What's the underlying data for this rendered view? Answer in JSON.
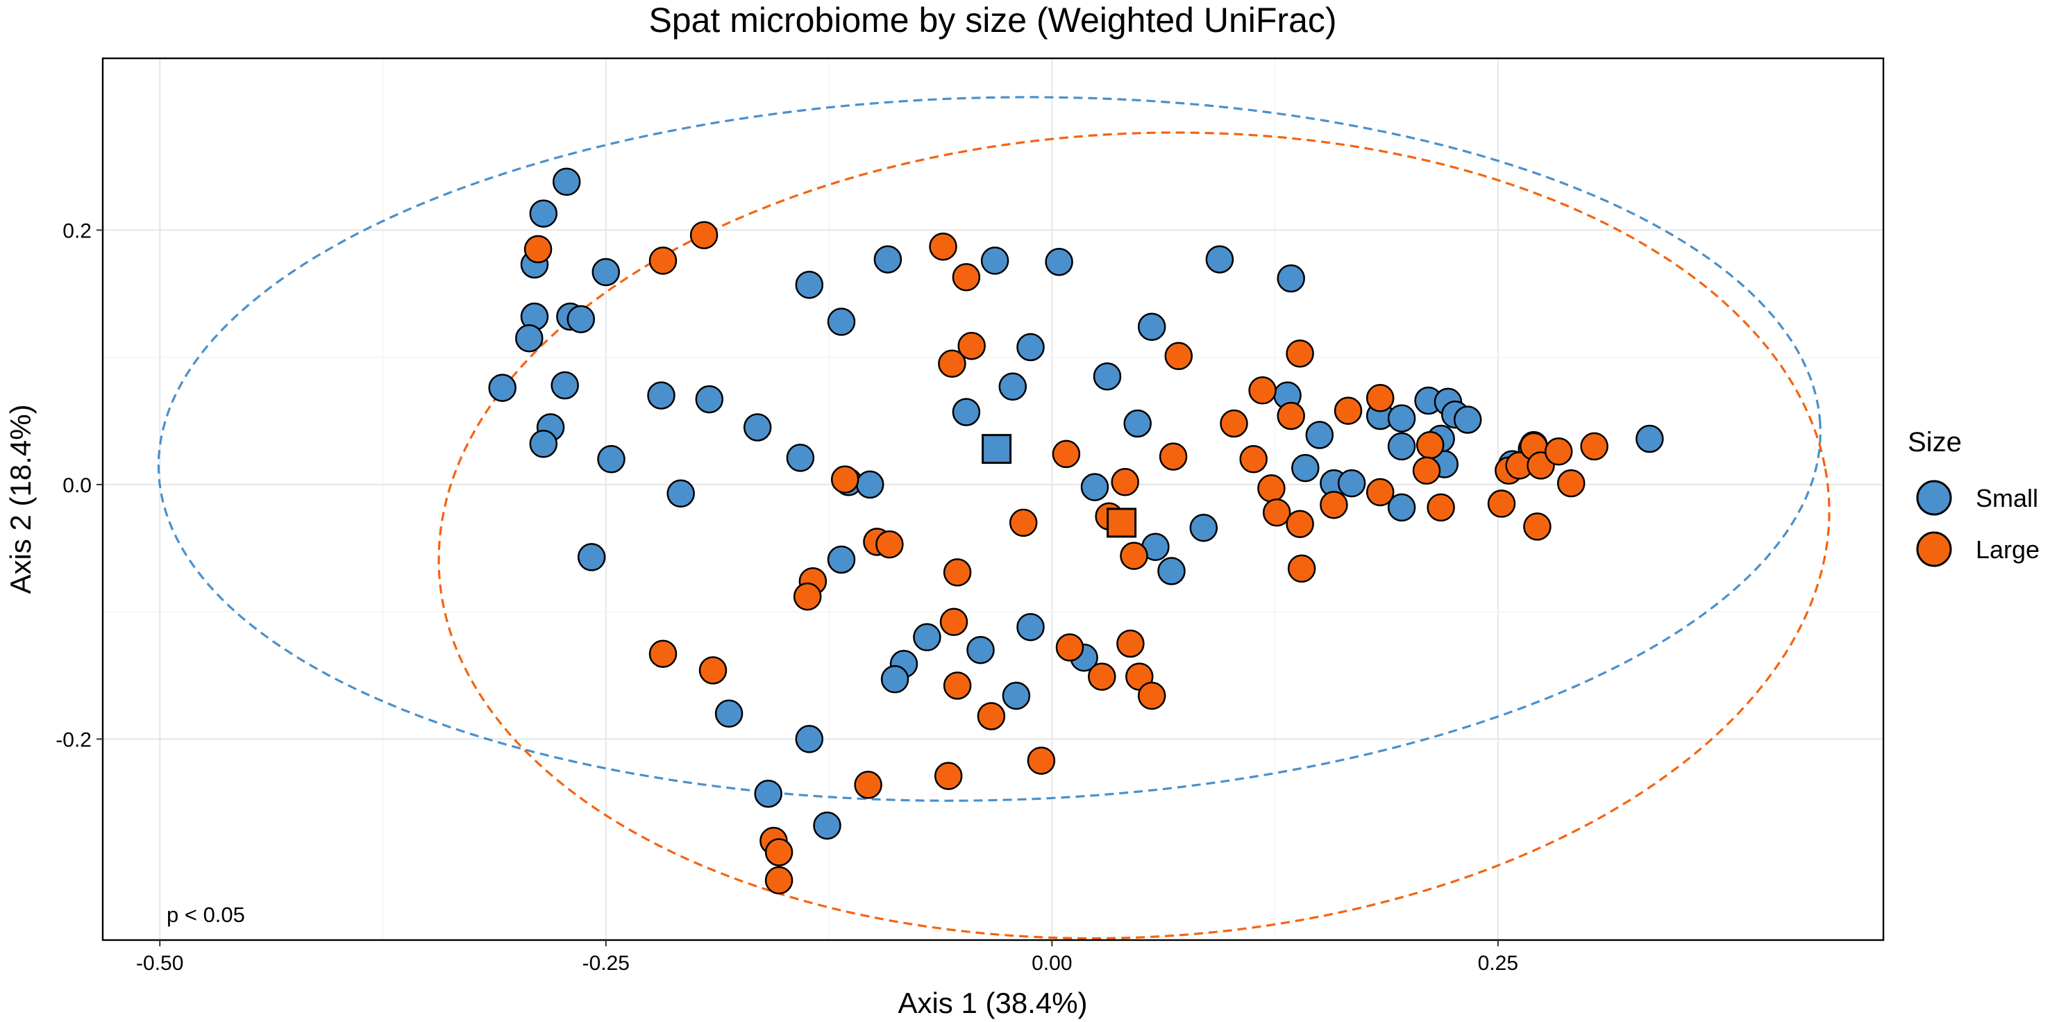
{
  "chart_data": {
    "type": "scatter",
    "title": "Spat microbiome by size (Weighted UniFrac)",
    "xlabel": "Axis 1 (38.4%)",
    "ylabel": "Axis 2 (18.4%)",
    "xlim": [
      -0.532,
      0.466
    ],
    "ylim": [
      -0.358,
      0.335
    ],
    "x_ticks": [
      -0.5,
      -0.25,
      0.0,
      0.25
    ],
    "x_tick_labels": [
      "-0.50",
      "-0.25",
      "0.00",
      "0.25"
    ],
    "y_ticks": [
      -0.2,
      0.0,
      0.2
    ],
    "y_tick_labels": [
      "-0.2",
      "0.0",
      "0.2"
    ],
    "grid": true,
    "annotation": "p < 0.05",
    "legend": {
      "title": "Size",
      "position": "right",
      "entries": [
        {
          "label": "Small",
          "color": "#4A90CC"
        },
        {
          "label": "Large",
          "color": "#F4640F"
        }
      ]
    },
    "series": [
      {
        "name": "Small",
        "color": "#4A90CC",
        "marker": "circle",
        "points": [
          [
            -0.272,
            0.238
          ],
          [
            -0.285,
            0.213
          ],
          [
            -0.29,
            0.173
          ],
          [
            -0.29,
            0.132
          ],
          [
            -0.293,
            0.115
          ],
          [
            -0.27,
            0.132
          ],
          [
            -0.264,
            0.13
          ],
          [
            -0.25,
            0.167
          ],
          [
            -0.308,
            0.076
          ],
          [
            -0.273,
            0.078
          ],
          [
            -0.281,
            0.045
          ],
          [
            -0.285,
            0.032
          ],
          [
            -0.247,
            0.02
          ],
          [
            -0.219,
            0.07
          ],
          [
            -0.192,
            0.067
          ],
          [
            -0.165,
            0.045
          ],
          [
            -0.141,
            0.021
          ],
          [
            -0.208,
            -0.007
          ],
          [
            -0.258,
            -0.057
          ],
          [
            -0.136,
            0.157
          ],
          [
            -0.118,
            0.128
          ],
          [
            -0.092,
            0.177
          ],
          [
            -0.032,
            0.176
          ],
          [
            0.004,
            0.175
          ],
          [
            -0.048,
            0.057
          ],
          [
            -0.022,
            0.077
          ],
          [
            -0.012,
            0.108
          ],
          [
            0.056,
            0.124
          ],
          [
            0.031,
            0.085
          ],
          [
            0.048,
            0.048
          ],
          [
            0.094,
            0.177
          ],
          [
            0.134,
            0.162
          ],
          [
            0.132,
            0.07
          ],
          [
            0.15,
            0.039
          ],
          [
            0.142,
            0.013
          ],
          [
            0.158,
            0.001
          ],
          [
            0.168,
            0.001
          ],
          [
            0.184,
            0.054
          ],
          [
            0.196,
            0.052
          ],
          [
            0.196,
            0.03
          ],
          [
            0.211,
            0.066
          ],
          [
            0.222,
            0.065
          ],
          [
            0.218,
            0.036
          ],
          [
            0.226,
            0.055
          ],
          [
            0.233,
            0.051
          ],
          [
            0.22,
            0.016
          ],
          [
            0.196,
            -0.018
          ],
          [
            0.335,
            0.036
          ],
          [
            0.27,
            0.031
          ],
          [
            0.269,
            0.028
          ],
          [
            0.258,
            0.016
          ],
          [
            -0.114,
            0.002
          ],
          [
            -0.102,
            0.0
          ],
          [
            -0.118,
            -0.059
          ],
          [
            0.024,
            -0.002
          ],
          [
            0.058,
            -0.049
          ],
          [
            0.067,
            -0.068
          ],
          [
            0.085,
            -0.034
          ],
          [
            -0.012,
            -0.112
          ],
          [
            -0.04,
            -0.13
          ],
          [
            -0.07,
            -0.12
          ],
          [
            -0.083,
            -0.141
          ],
          [
            -0.088,
            -0.153
          ],
          [
            -0.02,
            -0.166
          ],
          [
            0.018,
            -0.136
          ],
          [
            -0.181,
            -0.18
          ],
          [
            -0.136,
            -0.2
          ],
          [
            -0.159,
            -0.243
          ],
          [
            -0.126,
            -0.268
          ]
        ]
      },
      {
        "name": "Large",
        "color": "#F4640F",
        "marker": "circle",
        "points": [
          [
            -0.288,
            0.185
          ],
          [
            -0.218,
            0.176
          ],
          [
            -0.195,
            0.196
          ],
          [
            -0.061,
            0.187
          ],
          [
            -0.048,
            0.163
          ],
          [
            -0.056,
            0.095
          ],
          [
            -0.045,
            0.109
          ],
          [
            0.071,
            0.101
          ],
          [
            0.008,
            0.024
          ],
          [
            0.068,
            0.022
          ],
          [
            0.041,
            0.002
          ],
          [
            0.032,
            -0.025
          ],
          [
            0.046,
            -0.056
          ],
          [
            -0.016,
            -0.03
          ],
          [
            0.102,
            0.048
          ],
          [
            0.118,
            0.074
          ],
          [
            0.134,
            0.054
          ],
          [
            0.139,
            0.103
          ],
          [
            0.166,
            0.058
          ],
          [
            0.113,
            0.02
          ],
          [
            0.123,
            -0.003
          ],
          [
            0.126,
            -0.022
          ],
          [
            0.139,
            -0.031
          ],
          [
            0.14,
            -0.066
          ],
          [
            0.158,
            -0.016
          ],
          [
            0.184,
            0.068
          ],
          [
            0.184,
            -0.006
          ],
          [
            0.212,
            0.031
          ],
          [
            0.21,
            0.011
          ],
          [
            0.218,
            -0.018
          ],
          [
            0.252,
            -0.015
          ],
          [
            0.256,
            0.011
          ],
          [
            0.262,
            0.015
          ],
          [
            0.27,
            0.03
          ],
          [
            0.274,
            0.015
          ],
          [
            0.284,
            0.026
          ],
          [
            0.272,
            -0.033
          ],
          [
            0.291,
            0.001
          ],
          [
            0.304,
            0.03
          ],
          [
            -0.116,
            0.004
          ],
          [
            -0.098,
            -0.045
          ],
          [
            -0.091,
            -0.047
          ],
          [
            -0.053,
            -0.069
          ],
          [
            -0.134,
            -0.076
          ],
          [
            -0.137,
            -0.088
          ],
          [
            -0.055,
            -0.108
          ],
          [
            -0.053,
            -0.158
          ],
          [
            -0.034,
            -0.182
          ],
          [
            0.01,
            -0.128
          ],
          [
            0.028,
            -0.151
          ],
          [
            0.044,
            -0.125
          ],
          [
            0.049,
            -0.151
          ],
          [
            0.056,
            -0.166
          ],
          [
            -0.218,
            -0.133
          ],
          [
            -0.19,
            -0.146
          ],
          [
            -0.006,
            -0.217
          ],
          [
            -0.058,
            -0.229
          ],
          [
            -0.103,
            -0.236
          ],
          [
            -0.156,
            -0.28
          ],
          [
            -0.153,
            -0.289
          ],
          [
            -0.153,
            -0.311
          ]
        ]
      }
    ],
    "centroids": [
      {
        "name": "Small",
        "marker": "square",
        "x": -0.031,
        "y": 0.028
      },
      {
        "name": "Large",
        "marker": "square",
        "x": 0.039,
        "y": -0.03
      }
    ],
    "ellipses": [
      {
        "name": "Small",
        "style": "dashed",
        "center": [
          -0.035,
          0.028
        ],
        "semi_major": 0.466,
        "semi_minor": 0.276,
        "angle_deg": 2.5
      },
      {
        "name": "Large",
        "style": "dashed",
        "center": [
          0.046,
          -0.04
        ],
        "semi_major": 0.391,
        "semi_minor": 0.315,
        "angle_deg": 8.0
      }
    ]
  }
}
